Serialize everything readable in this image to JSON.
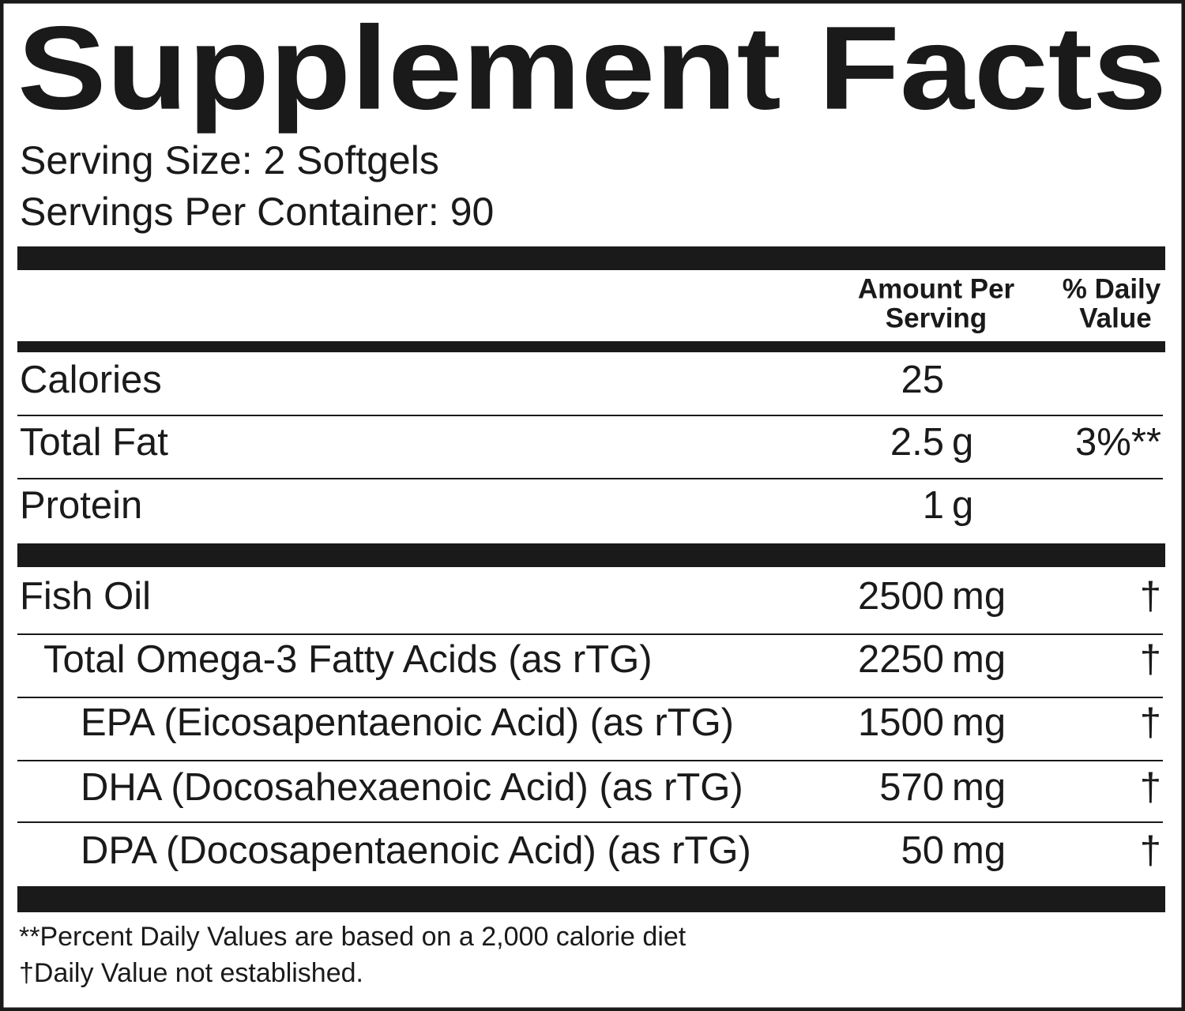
{
  "title": "Supplement Facts",
  "serving_size": "Serving Size: 2 Softgels",
  "servings_per_container": "Servings Per Container: 90",
  "header": {
    "amount": [
      "Amount Per",
      "Serving"
    ],
    "daily_value": [
      "% Daily",
      "Value"
    ]
  },
  "rows": [
    {
      "name": "Calories",
      "amount": "25"
    },
    {
      "name": "Total Fat",
      "amount": "2.5",
      "unit": "g",
      "dv": "3%**"
    },
    {
      "name": "Protein",
      "amount": "1",
      "unit": "g"
    },
    {
      "name": "Fish Oil",
      "amount": "2500",
      "unit": "mg",
      "dv": "†"
    },
    {
      "name": "Total Omega-3 Fatty Acids (as rTG)",
      "amount": "2250",
      "unit": "mg",
      "dv": "†"
    },
    {
      "name": "EPA (Eicosapentaenoic Acid) (as rTG)",
      "amount": "1500",
      "unit": "mg",
      "dv": "†"
    },
    {
      "name": "DHA (Docosahexaenoic Acid) (as rTG)",
      "amount": "570",
      "unit": "mg",
      "dv": "†"
    },
    {
      "name": "DPA (Docosapentaenoic Acid) (as rTG)",
      "amount": "50",
      "unit": "mg",
      "dv": "†"
    }
  ],
  "footnotes": [
    "**Percent Daily Values are based on a 2,000 calorie diet",
    "†Daily Value not established."
  ]
}
